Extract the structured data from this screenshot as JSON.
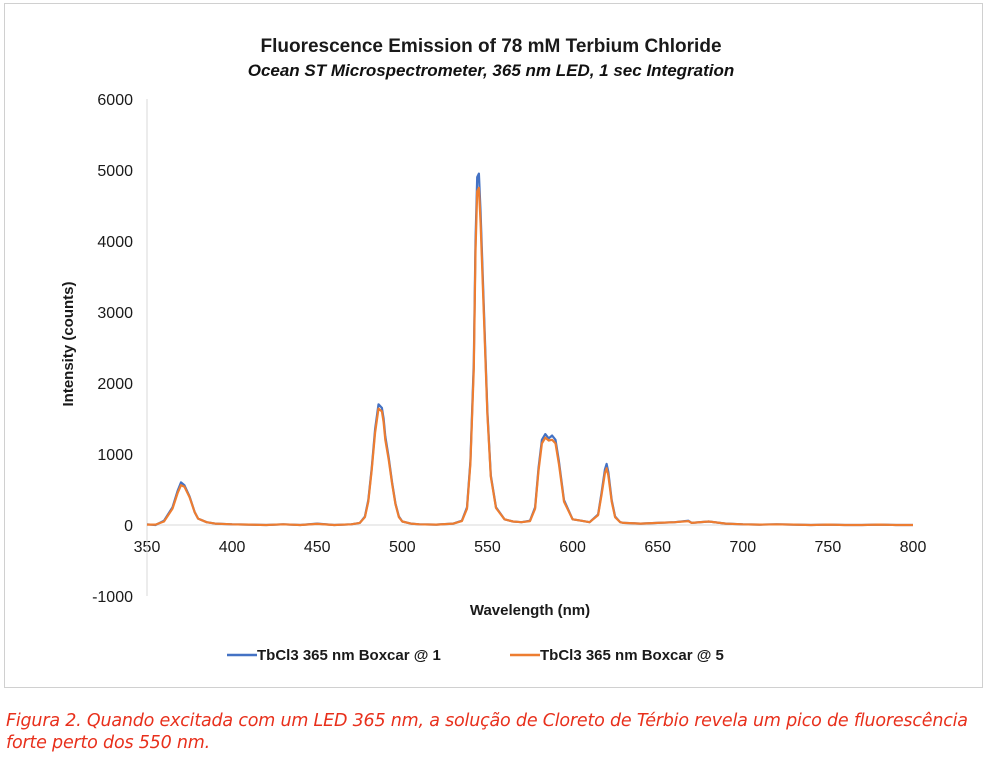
{
  "chart_data": {
    "type": "line",
    "title": "Fluorescence Emission of 78 mM Terbium Chloride",
    "subtitle": "Ocean ST Microspectrometer, 365 nm LED, 1 sec Integration",
    "xlabel": "Wavelength (nm)",
    "ylabel": "Intensity (counts)",
    "xlim": [
      350,
      800
    ],
    "ylim": [
      -1000,
      6000
    ],
    "x_ticks": [
      "350",
      "400",
      "450",
      "500",
      "550",
      "600",
      "650",
      "700",
      "750",
      "800"
    ],
    "y_ticks": [
      "-1000",
      "0",
      "1000",
      "2000",
      "3000",
      "4000",
      "5000",
      "6000"
    ],
    "grid": false,
    "legend_position": "bottom",
    "series": [
      {
        "name": "TbCl3 365 nm Boxcar @ 1",
        "color": "#4472c4",
        "x": [
          350,
          355,
          360,
          365,
          368,
          370,
          372,
          375,
          378,
          380,
          385,
          390,
          400,
          410,
          420,
          430,
          440,
          450,
          460,
          470,
          475,
          478,
          480,
          482,
          484,
          486,
          488,
          489,
          490,
          492,
          494,
          496,
          498,
          500,
          505,
          510,
          520,
          530,
          535,
          538,
          540,
          542,
          543,
          544,
          545,
          546,
          548,
          550,
          552,
          555,
          560,
          565,
          570,
          575,
          578,
          580,
          582,
          584,
          586,
          588,
          590,
          592,
          595,
          600,
          605,
          610,
          615,
          617,
          619,
          620,
          621,
          623,
          625,
          628,
          630,
          640,
          650,
          660,
          668,
          670,
          680,
          690,
          700,
          710,
          720,
          730,
          740,
          750,
          760,
          770,
          780,
          790,
          800
        ],
        "y": [
          10,
          0,
          60,
          250,
          480,
          600,
          560,
          400,
          180,
          90,
          40,
          20,
          10,
          5,
          0,
          10,
          0,
          20,
          0,
          10,
          30,
          120,
          350,
          800,
          1350,
          1700,
          1650,
          1500,
          1250,
          950,
          600,
          300,
          120,
          50,
          20,
          10,
          5,
          20,
          60,
          250,
          900,
          2300,
          4000,
          4900,
          4950,
          4400,
          3000,
          1600,
          700,
          250,
          80,
          50,
          40,
          60,
          250,
          800,
          1200,
          1280,
          1220,
          1260,
          1200,
          900,
          350,
          80,
          60,
          40,
          150,
          450,
          780,
          860,
          750,
          350,
          120,
          40,
          30,
          20,
          30,
          40,
          60,
          30,
          50,
          20,
          10,
          5,
          10,
          5,
          0,
          5,
          0,
          0,
          5,
          0,
          0
        ]
      },
      {
        "name": "TbCl3 365 nm Boxcar @ 5",
        "color": "#ed7d31",
        "x": [
          350,
          355,
          360,
          365,
          368,
          370,
          372,
          375,
          378,
          380,
          385,
          390,
          400,
          410,
          420,
          430,
          440,
          450,
          460,
          470,
          475,
          478,
          480,
          482,
          484,
          486,
          488,
          489,
          490,
          492,
          494,
          496,
          498,
          500,
          505,
          510,
          520,
          530,
          535,
          538,
          540,
          542,
          543,
          544,
          545,
          546,
          548,
          550,
          552,
          555,
          560,
          565,
          570,
          575,
          578,
          580,
          582,
          584,
          586,
          588,
          590,
          592,
          595,
          600,
          605,
          610,
          615,
          617,
          619,
          620,
          621,
          623,
          625,
          628,
          630,
          640,
          650,
          660,
          668,
          670,
          680,
          690,
          700,
          710,
          720,
          730,
          740,
          750,
          760,
          770,
          780,
          790,
          800
        ],
        "y": [
          5,
          5,
          50,
          230,
          450,
          560,
          540,
          390,
          180,
          90,
          40,
          20,
          10,
          5,
          0,
          10,
          0,
          15,
          0,
          10,
          30,
          110,
          330,
          770,
          1300,
          1640,
          1600,
          1450,
          1200,
          920,
          580,
          290,
          110,
          50,
          20,
          10,
          5,
          20,
          55,
          230,
          860,
          2200,
          3850,
          4700,
          4750,
          4250,
          2900,
          1550,
          680,
          240,
          80,
          50,
          40,
          55,
          230,
          760,
          1150,
          1230,
          1190,
          1200,
          1150,
          860,
          330,
          80,
          60,
          40,
          140,
          420,
          730,
          800,
          700,
          330,
          110,
          40,
          30,
          20,
          30,
          40,
          55,
          30,
          50,
          20,
          10,
          5,
          10,
          5,
          0,
          5,
          0,
          0,
          5,
          0,
          0
        ]
      }
    ]
  },
  "caption": "Figura 2. Quando excitada com um LED 365 nm, a solução de Cloreto de Térbio revela um pico de fluorescência forte perto dos 550 nm."
}
